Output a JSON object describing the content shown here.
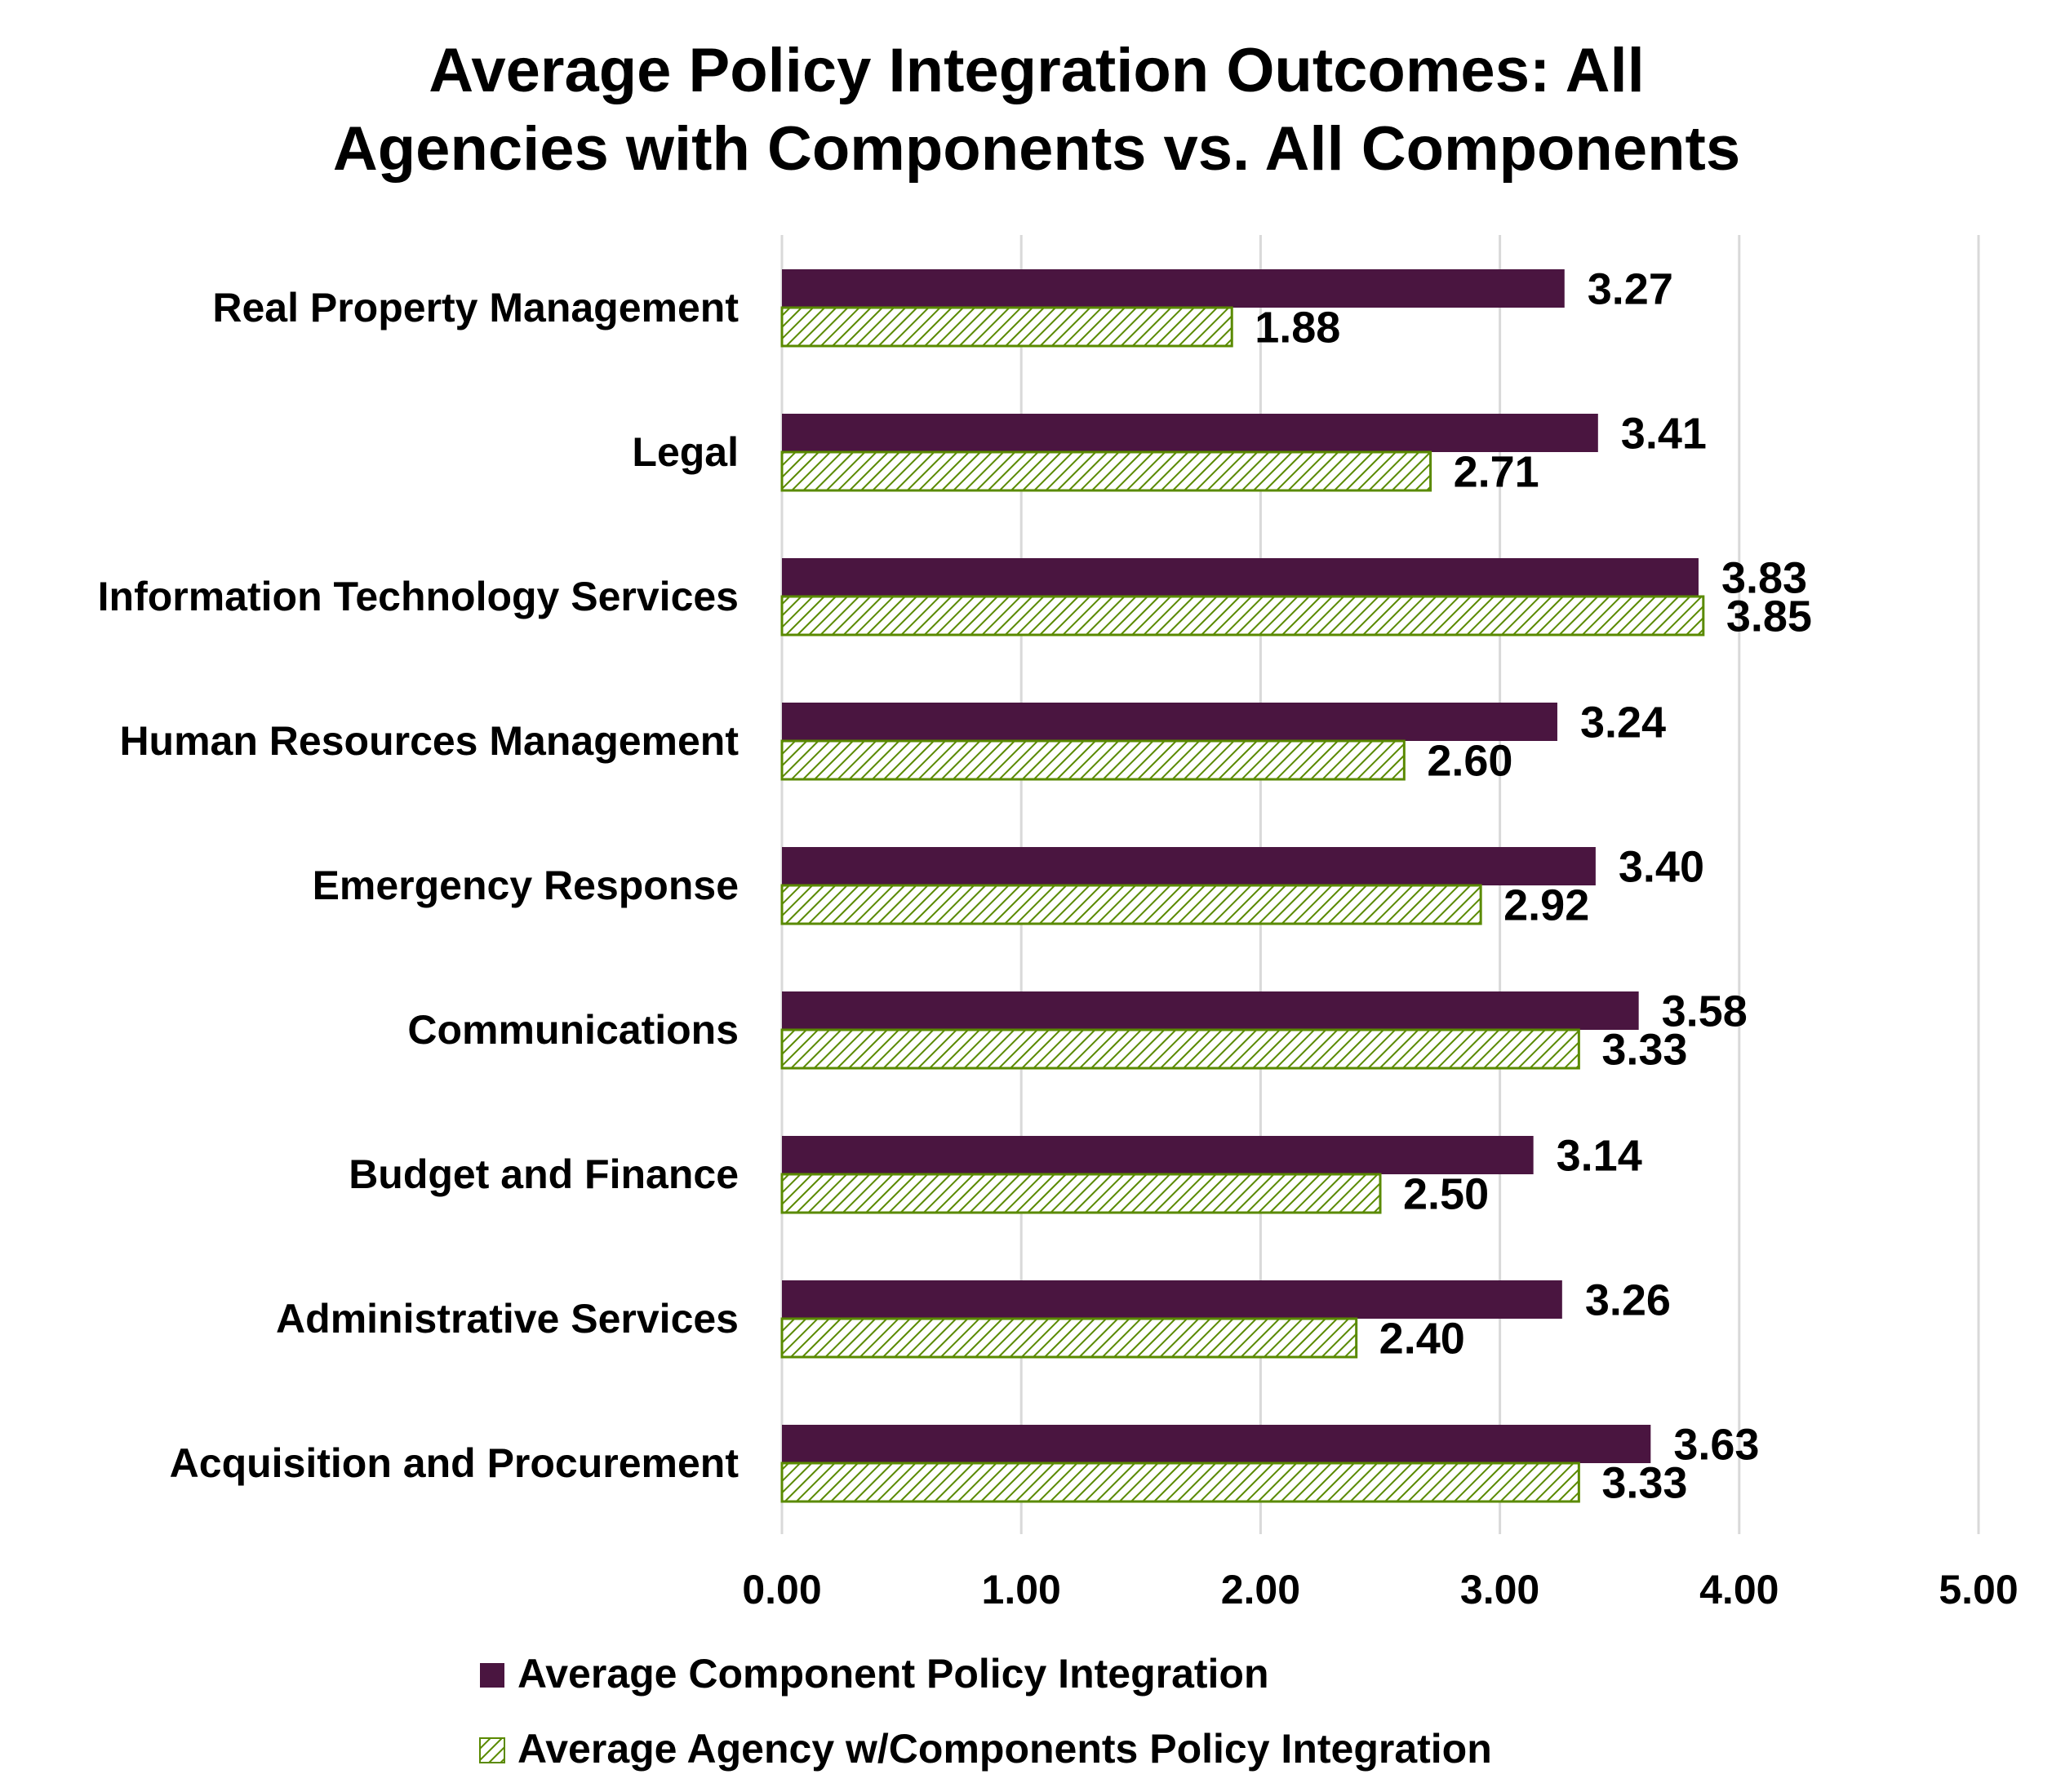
{
  "chart_data": {
    "type": "bar",
    "orientation": "horizontal",
    "title_lines": [
      "Average Policy Integration Outcomes: All",
      "Agencies with Components  vs. All Components"
    ],
    "categories": [
      "Real Property Management",
      "Legal",
      "Information Technology Services",
      "Human Resources Management",
      "Emergency Response",
      "Communications",
      "Budget and Finance",
      "Administrative Services",
      "Acquisition and Procurement"
    ],
    "series": [
      {
        "name": "Average Component Policy Integration",
        "color": "#4a1540",
        "pattern": "solid",
        "values": [
          3.27,
          3.41,
          3.83,
          3.24,
          3.4,
          3.58,
          3.14,
          3.26,
          3.63
        ],
        "labels": [
          "3.27",
          "3.41",
          "3.83",
          "3.24",
          "3.40",
          "3.58",
          "3.14",
          "3.26",
          "3.63"
        ]
      },
      {
        "name": "Average Agency w/Components Policy Integration",
        "color": "#5a8a00",
        "pattern": "diagonal-hatch",
        "values": [
          1.88,
          2.71,
          3.85,
          2.6,
          2.92,
          3.33,
          2.5,
          2.4,
          3.33
        ],
        "labels": [
          "1.88",
          "2.71",
          "3.85",
          "2.60",
          "2.92",
          "3.33",
          "2.50",
          "2.40",
          "3.33"
        ]
      }
    ],
    "xlim": [
      0,
      5
    ],
    "xticks": [
      "0.00",
      "1.00",
      "2.00",
      "3.00",
      "4.00",
      "5.00"
    ],
    "xlabel": "",
    "ylabel": "",
    "grid": "vertical",
    "legend": "bottom"
  }
}
